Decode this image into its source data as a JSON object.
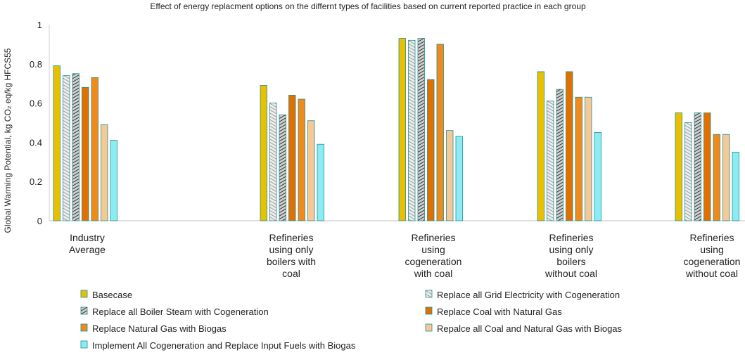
{
  "chart_data": {
    "type": "bar",
    "title": "Effect of energy replacment options on the differnt types of facilities based on current reported practice in each group",
    "xlabel": "",
    "ylabel": "Global Warming Potential, kg CO₂ eq/kg HFCS55",
    "ylim": [
      0,
      1
    ],
    "yticks": [
      "0",
      "0.2",
      "0.4",
      "0.6",
      "0.8",
      "1"
    ],
    "grid": false,
    "legend_position": "bottom",
    "categories": [
      [
        "Industry",
        "Average"
      ],
      [
        "Refineries",
        "using only",
        "boilers with",
        "coal"
      ],
      [
        "Refineries",
        "using",
        "cogeneration",
        "with coal"
      ],
      [
        "Refineries",
        "using only",
        "boilers",
        "without coal"
      ],
      [
        "Refineries",
        "using",
        "cogeneration",
        "without coal"
      ]
    ],
    "series": [
      {
        "name": "Basecase",
        "color": "#e8c000",
        "pattern": "solid",
        "values": [
          0.79,
          0.69,
          0.93,
          0.76,
          0.55
        ]
      },
      {
        "name": "Replace all Grid Electricity with Cogeneration",
        "color": "#c0c0c0",
        "pattern": "hatch-light",
        "values": [
          0.74,
          0.6,
          0.92,
          0.61,
          0.5
        ]
      },
      {
        "name": "Replace all Boiler Steam with Cogeneration",
        "color": "#555555",
        "pattern": "hatch-dark",
        "values": [
          0.75,
          0.54,
          0.93,
          0.67,
          0.55
        ]
      },
      {
        "name": "Replace Coal with Natural Gas",
        "color": "#e07000",
        "pattern": "solid",
        "values": [
          0.68,
          0.64,
          0.72,
          0.76,
          0.55
        ]
      },
      {
        "name": "Replace Natural Gas with Biogas",
        "color": "#f08a1a",
        "pattern": "solid",
        "values": [
          0.73,
          0.62,
          0.9,
          0.63,
          0.44
        ]
      },
      {
        "name": "Repalce all Coal and Natural Gas with Biogas",
        "color": "#f5c896",
        "pattern": "solid",
        "values": [
          0.49,
          0.51,
          0.46,
          0.63,
          0.44
        ]
      },
      {
        "name": "Implement All Cogeneration and Replace Input Fuels with Biogas",
        "color": "#8cecf4",
        "pattern": "solid",
        "values": [
          0.41,
          0.39,
          0.43,
          0.45,
          0.35
        ]
      }
    ]
  }
}
